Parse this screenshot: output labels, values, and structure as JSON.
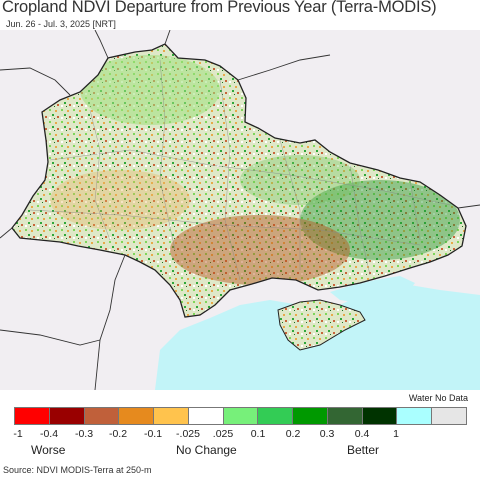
{
  "title": "Cropland NDVI Departure from Previous Year (Terra-MODIS)",
  "subtitle": "Jun. 26 - Jul. 3, 2025 [NRT]",
  "legend": {
    "water_no_data_label": "Water No Data",
    "swatch_colors": [
      "#ff0000",
      "#990000",
      "#c0603a",
      "#e68a1e",
      "#ffc34d",
      "#ffffff",
      "#77f07a",
      "#33cc55",
      "#009900",
      "#336633",
      "#003300",
      "#aaffff",
      "#e6e6e6"
    ],
    "tick_labels": [
      "-1",
      "-0.4",
      "-0.3",
      "-0.2",
      "-0.1",
      "-.025",
      ".025",
      "0.1",
      "0.2",
      "0.3",
      "0.4",
      "1"
    ],
    "categories": {
      "worse": "Worse",
      "no_change": "No Change",
      "better": "Better"
    }
  },
  "source": "Source: NDVI MODIS-Terra at 250-m",
  "colors": {
    "sea": "#c2f4f8",
    "land_background": "#f1eef2",
    "border": "#222222"
  }
}
